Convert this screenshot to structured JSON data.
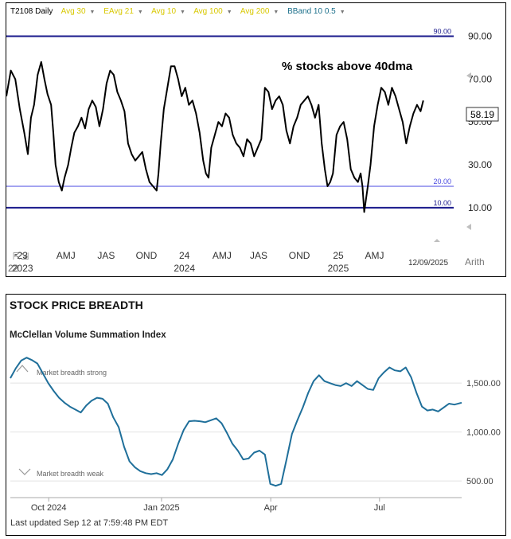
{
  "chart_data": [
    {
      "type": "line",
      "legend_items": [
        {
          "label": "T2108 Daily",
          "color": "#000000"
        },
        {
          "label": "Avg 30",
          "color": "#d8c800"
        },
        {
          "label": "EAvg 21",
          "color": "#d8c800"
        },
        {
          "label": "Avg 10",
          "color": "#d8c800"
        },
        {
          "label": "Avg 100",
          "color": "#d8c800"
        },
        {
          "label": "Avg 200",
          "color": "#d8c800"
        },
        {
          "label": "BBand 10 0.5",
          "color": "#1a6e8a"
        }
      ],
      "title": "% stocks above 40dma",
      "y_axis_ticks": [
        "90.00",
        "70.00",
        "50.00",
        "30.00",
        "10.00"
      ],
      "ylim": [
        -6,
        98
      ],
      "last_value": "58.19",
      "reference_lines": [
        {
          "value": 90,
          "label": "90.00",
          "color": "#1a1a8c",
          "width": 2
        },
        {
          "value": 20,
          "label": "20.00",
          "color": "#4a4ae0",
          "width": 1
        },
        {
          "value": 10,
          "label": "10.00",
          "color": "#1a1a8c",
          "width": 2
        }
      ],
      "x_tick_labels": [
        {
          "label": "23",
          "pos": 0.036
        },
        {
          "label": "AMJ",
          "pos": 0.133
        },
        {
          "label": "JAS",
          "pos": 0.223
        },
        {
          "label": "OND",
          "pos": 0.313
        },
        {
          "label": "24",
          "pos": 0.398
        },
        {
          "label": "AMJ",
          "pos": 0.482
        },
        {
          "label": "JAS",
          "pos": 0.564
        },
        {
          "label": "OND",
          "pos": 0.655
        },
        {
          "label": "25",
          "pos": 0.742
        },
        {
          "label": "AMJ",
          "pos": 0.823
        }
      ],
      "x_year_labels": [
        {
          "label": "2023",
          "pos": 0.036
        },
        {
          "label": "2024",
          "pos": 0.398
        },
        {
          "label": "2025",
          "pos": 0.742
        }
      ],
      "x_edge_label": "22",
      "end_date": "12/09/2025",
      "scale_label": "Arith",
      "series": [
        {
          "color": "#000000",
          "points": [
            [
              0.0,
              62
            ],
            [
              0.01,
              74
            ],
            [
              0.02,
              70
            ],
            [
              0.03,
              56
            ],
            [
              0.04,
              45
            ],
            [
              0.048,
              35
            ],
            [
              0.055,
              52
            ],
            [
              0.062,
              58
            ],
            [
              0.07,
              72
            ],
            [
              0.078,
              78
            ],
            [
              0.085,
              70
            ],
            [
              0.092,
              63
            ],
            [
              0.1,
              58
            ],
            [
              0.105,
              45
            ],
            [
              0.11,
              30
            ],
            [
              0.117,
              22
            ],
            [
              0.124,
              18
            ],
            [
              0.13,
              24
            ],
            [
              0.138,
              30
            ],
            [
              0.145,
              38
            ],
            [
              0.152,
              45
            ],
            [
              0.16,
              48
            ],
            [
              0.168,
              52
            ],
            [
              0.176,
              47
            ],
            [
              0.184,
              56
            ],
            [
              0.192,
              60
            ],
            [
              0.2,
              57
            ],
            [
              0.208,
              48
            ],
            [
              0.216,
              56
            ],
            [
              0.224,
              68
            ],
            [
              0.232,
              74
            ],
            [
              0.24,
              72
            ],
            [
              0.248,
              64
            ],
            [
              0.256,
              60
            ],
            [
              0.264,
              55
            ],
            [
              0.272,
              40
            ],
            [
              0.28,
              35
            ],
            [
              0.288,
              32
            ],
            [
              0.296,
              34
            ],
            [
              0.304,
              36
            ],
            [
              0.312,
              28
            ],
            [
              0.32,
              22
            ],
            [
              0.328,
              20
            ],
            [
              0.336,
              18
            ],
            [
              0.34,
              26
            ],
            [
              0.345,
              40
            ],
            [
              0.352,
              56
            ],
            [
              0.36,
              66
            ],
            [
              0.368,
              76
            ],
            [
              0.376,
              76
            ],
            [
              0.384,
              70
            ],
            [
              0.392,
              62
            ],
            [
              0.4,
              66
            ],
            [
              0.408,
              58
            ],
            [
              0.416,
              60
            ],
            [
              0.424,
              54
            ],
            [
              0.432,
              45
            ],
            [
              0.44,
              32
            ],
            [
              0.446,
              26
            ],
            [
              0.452,
              24
            ],
            [
              0.458,
              38
            ],
            [
              0.466,
              44
            ],
            [
              0.474,
              50
            ],
            [
              0.482,
              48
            ],
            [
              0.49,
              54
            ],
            [
              0.498,
              52
            ],
            [
              0.506,
              44
            ],
            [
              0.514,
              40
            ],
            [
              0.522,
              38
            ],
            [
              0.53,
              34
            ],
            [
              0.538,
              42
            ],
            [
              0.546,
              40
            ],
            [
              0.554,
              34
            ],
            [
              0.562,
              38
            ],
            [
              0.57,
              42
            ],
            [
              0.578,
              66
            ],
            [
              0.586,
              64
            ],
            [
              0.594,
              56
            ],
            [
              0.602,
              60
            ],
            [
              0.61,
              62
            ],
            [
              0.618,
              58
            ],
            [
              0.626,
              46
            ],
            [
              0.634,
              40
            ],
            [
              0.642,
              48
            ],
            [
              0.65,
              52
            ],
            [
              0.658,
              58
            ],
            [
              0.666,
              60
            ],
            [
              0.674,
              62
            ],
            [
              0.682,
              58
            ],
            [
              0.69,
              52
            ],
            [
              0.698,
              58
            ],
            [
              0.705,
              40
            ],
            [
              0.712,
              28
            ],
            [
              0.718,
              20
            ],
            [
              0.724,
              22
            ],
            [
              0.73,
              26
            ],
            [
              0.738,
              44
            ],
            [
              0.746,
              48
            ],
            [
              0.754,
              50
            ],
            [
              0.762,
              42
            ],
            [
              0.77,
              28
            ],
            [
              0.778,
              24
            ],
            [
              0.786,
              22
            ],
            [
              0.792,
              26
            ],
            [
              0.796,
              20
            ],
            [
              0.8,
              8
            ],
            [
              0.804,
              14
            ],
            [
              0.808,
              20
            ],
            [
              0.814,
              30
            ],
            [
              0.822,
              48
            ],
            [
              0.83,
              58
            ],
            [
              0.838,
              66
            ],
            [
              0.846,
              64
            ],
            [
              0.854,
              58
            ],
            [
              0.862,
              66
            ],
            [
              0.87,
              62
            ],
            [
              0.878,
              56
            ],
            [
              0.886,
              50
            ],
            [
              0.894,
              40
            ],
            [
              0.902,
              48
            ],
            [
              0.91,
              54
            ],
            [
              0.918,
              58
            ],
            [
              0.926,
              55
            ],
            [
              0.932,
              60
            ]
          ]
        }
      ]
    },
    {
      "type": "line",
      "title": "STOCK PRICE BREADTH",
      "subtitle": "McClellan Volume Summation Index",
      "annotations": {
        "strong": "Market breadth strong",
        "weak": "Market breadth weak"
      },
      "y_axis_ticks": [
        {
          "value": 1500,
          "label": "1,500.00"
        },
        {
          "value": 1000,
          "label": "1,000.00"
        },
        {
          "value": 500,
          "label": "500.00"
        }
      ],
      "ylim": [
        330,
        1900
      ],
      "x_tick_labels": [
        {
          "label": "Oct 2024",
          "pos": 0.085
        },
        {
          "label": "Jan 2025",
          "pos": 0.335
        },
        {
          "label": "Apr",
          "pos": 0.577
        },
        {
          "label": "Jul",
          "pos": 0.818
        }
      ],
      "footer": "Last updated Sep 12 at 7:59:48 PM EDT",
      "series": [
        {
          "color": "#1f6f9a",
          "points": [
            [
              0.0,
              1550
            ],
            [
              0.012,
              1650
            ],
            [
              0.024,
              1730
            ],
            [
              0.036,
              1760
            ],
            [
              0.048,
              1735
            ],
            [
              0.06,
              1700
            ],
            [
              0.072,
              1600
            ],
            [
              0.084,
              1500
            ],
            [
              0.096,
              1420
            ],
            [
              0.108,
              1350
            ],
            [
              0.12,
              1300
            ],
            [
              0.132,
              1260
            ],
            [
              0.144,
              1230
            ],
            [
              0.156,
              1200
            ],
            [
              0.168,
              1270
            ],
            [
              0.18,
              1320
            ],
            [
              0.192,
              1350
            ],
            [
              0.204,
              1340
            ],
            [
              0.216,
              1290
            ],
            [
              0.228,
              1150
            ],
            [
              0.24,
              1050
            ],
            [
              0.252,
              850
            ],
            [
              0.264,
              700
            ],
            [
              0.276,
              640
            ],
            [
              0.288,
              600
            ],
            [
              0.3,
              580
            ],
            [
              0.312,
              570
            ],
            [
              0.324,
              580
            ],
            [
              0.336,
              560
            ],
            [
              0.348,
              620
            ],
            [
              0.36,
              720
            ],
            [
              0.372,
              880
            ],
            [
              0.384,
              1020
            ],
            [
              0.396,
              1110
            ],
            [
              0.408,
              1115
            ],
            [
              0.42,
              1110
            ],
            [
              0.432,
              1100
            ],
            [
              0.444,
              1120
            ],
            [
              0.456,
              1140
            ],
            [
              0.468,
              1090
            ],
            [
              0.48,
              990
            ],
            [
              0.492,
              880
            ],
            [
              0.504,
              810
            ],
            [
              0.516,
              720
            ],
            [
              0.528,
              730
            ],
            [
              0.54,
              790
            ],
            [
              0.552,
              810
            ],
            [
              0.564,
              770
            ],
            [
              0.576,
              470
            ],
            [
              0.588,
              450
            ],
            [
              0.6,
              470
            ],
            [
              0.612,
              720
            ],
            [
              0.624,
              980
            ],
            [
              0.636,
              1120
            ],
            [
              0.648,
              1250
            ],
            [
              0.66,
              1400
            ],
            [
              0.672,
              1520
            ],
            [
              0.684,
              1580
            ],
            [
              0.696,
              1520
            ],
            [
              0.708,
              1500
            ],
            [
              0.72,
              1480
            ],
            [
              0.732,
              1470
            ],
            [
              0.744,
              1500
            ],
            [
              0.756,
              1470
            ],
            [
              0.768,
              1520
            ],
            [
              0.78,
              1480
            ],
            [
              0.792,
              1440
            ],
            [
              0.804,
              1430
            ],
            [
              0.816,
              1550
            ],
            [
              0.828,
              1610
            ],
            [
              0.84,
              1660
            ],
            [
              0.852,
              1630
            ],
            [
              0.864,
              1620
            ],
            [
              0.876,
              1660
            ],
            [
              0.888,
              1560
            ],
            [
              0.9,
              1400
            ],
            [
              0.912,
              1260
            ],
            [
              0.924,
              1220
            ],
            [
              0.936,
              1230
            ],
            [
              0.948,
              1210
            ],
            [
              0.96,
              1250
            ],
            [
              0.972,
              1290
            ],
            [
              0.984,
              1280
            ],
            [
              1.0,
              1300
            ]
          ]
        }
      ]
    }
  ]
}
